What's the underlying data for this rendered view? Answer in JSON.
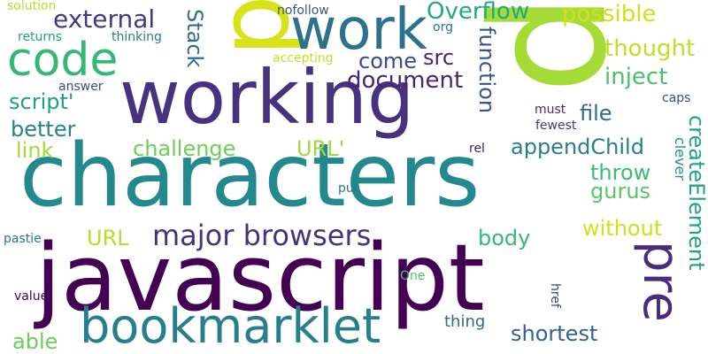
{
  "word_cloud": {
    "words": [
      {
        "text": "characters",
        "color": "#23898e"
      },
      {
        "text": "javascript",
        "color": "#440154"
      },
      {
        "text": "p",
        "color": "#a5db36"
      },
      {
        "text": "working",
        "color": "#46327e"
      },
      {
        "text": "d",
        "color": "#d8e219"
      },
      {
        "text": "work",
        "color": "#2c728e"
      },
      {
        "text": "code",
        "color": "#35b779"
      },
      {
        "text": "bookmarklet",
        "color": "#277f8e"
      },
      {
        "text": "major browsers",
        "color": "#46337e"
      },
      {
        "text": "pre",
        "color": "#472d7b"
      },
      {
        "text": "Overflow",
        "color": "#22a884"
      },
      {
        "text": "possible",
        "color": "#d0e11c"
      },
      {
        "text": "external",
        "color": "#443983"
      },
      {
        "text": "thought",
        "color": "#bddf26"
      },
      {
        "text": "inject",
        "color": "#4ac16d"
      },
      {
        "text": "document",
        "color": "#482475"
      },
      {
        "text": "come",
        "color": "#3e4989"
      },
      {
        "text": "src",
        "color": "#482475"
      },
      {
        "text": "script'",
        "color": "#1f9e89"
      },
      {
        "text": "better",
        "color": "#26828e"
      },
      {
        "text": "link",
        "color": "#a0da39"
      },
      {
        "text": "challenge",
        "color": "#6ece58"
      },
      {
        "text": "URL'",
        "color": "#9fda3a"
      },
      {
        "text": "appendChild",
        "color": "#277f8e"
      },
      {
        "text": "function",
        "color": "#3b528b"
      },
      {
        "text": "Stack",
        "color": "#2e6e8e"
      },
      {
        "text": "file",
        "color": "#306a8e"
      },
      {
        "text": "throw",
        "color": "#3bbb75"
      },
      {
        "text": "gurus",
        "color": "#54c568"
      },
      {
        "text": "createElement",
        "color": "#20a386"
      },
      {
        "text": "without",
        "color": "#cde11d"
      },
      {
        "text": "body",
        "color": "#35b779"
      },
      {
        "text": "URL",
        "color": "#b5de2b"
      },
      {
        "text": "shortest",
        "color": "#33638d"
      },
      {
        "text": "able",
        "color": "#6ccd5a"
      },
      {
        "text": "thing",
        "color": "#31688e"
      },
      {
        "text": "clever",
        "color": "#21918c"
      },
      {
        "text": "caps",
        "color": "#3e4989"
      },
      {
        "text": "must",
        "color": "#482878"
      },
      {
        "text": "fewest",
        "color": "#443983"
      },
      {
        "text": "rel",
        "color": "#481769"
      },
      {
        "text": "solution",
        "color": "#b8de29"
      },
      {
        "text": "returns",
        "color": "#1fa188"
      },
      {
        "text": "thinking",
        "color": "#297a8e"
      },
      {
        "text": "nofollow",
        "color": "#3b528b"
      },
      {
        "text": "org",
        "color": "#2c728e"
      },
      {
        "text": "accepting",
        "color": "#c2df23"
      },
      {
        "text": "answer",
        "color": "#3e4a89"
      },
      {
        "text": "put",
        "color": "#2b758e"
      },
      {
        "text": "pastie",
        "color": "#2c728e"
      },
      {
        "text": "One",
        "color": "#4ac16d"
      },
      {
        "text": "value",
        "color": "#440154"
      },
      {
        "text": "href",
        "color": "#414487"
      }
    ]
  }
}
